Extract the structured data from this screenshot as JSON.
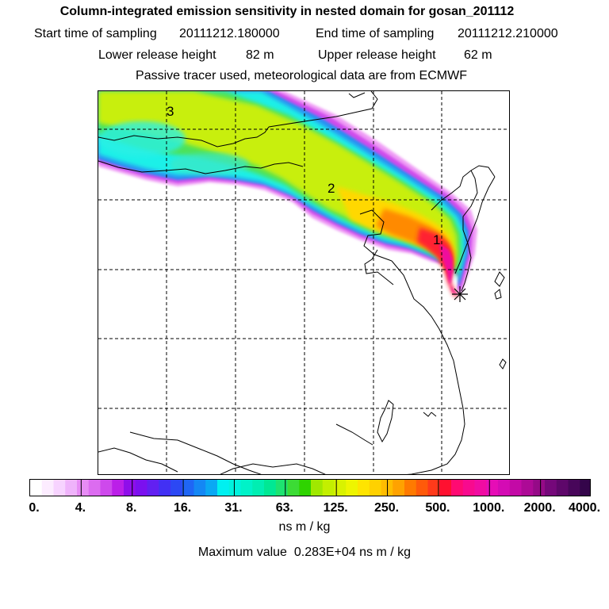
{
  "title": "Column-integrated emission sensitivity in nested domain for gosan_201112",
  "start_label": "Start time of sampling",
  "start_value": "20111212.180000",
  "end_label": "End time of sampling",
  "end_value": "20111212.210000",
  "lower_label": "Lower release height",
  "lower_value": "82 m",
  "upper_label": "Upper release height",
  "upper_value": "62 m",
  "tracer_note": "Passive tracer used, meteorological data are from ECMWF",
  "map": {
    "plume_labels": [
      "1",
      "2",
      "3"
    ],
    "release_marker": "star-marker",
    "grid": "dashed"
  },
  "colorbar": {
    "tick_labels": [
      "0.",
      "4.",
      "8.",
      "16.",
      "31.",
      "63.",
      "125.",
      "250.",
      "500.",
      "1000.",
      "2000.",
      "4000."
    ],
    "colors": [
      "#ffffff",
      "#fcecff",
      "#f7d3ff",
      "#efb3fb",
      "#e78cf5",
      "#dc6cf0",
      "#ce49ec",
      "#bb1fe8",
      "#8f0eea",
      "#7b10ef",
      "#6220f1",
      "#4230f4",
      "#2c48f4",
      "#1f66f5",
      "#1487f4",
      "#0aa8f3",
      "#00f0f0",
      "#00f2dd",
      "#00f2c8",
      "#00eeb2",
      "#00e894",
      "#1de370",
      "#3cdb35",
      "#2fd300",
      "#a0e800",
      "#c3ef00",
      "#d9f200",
      "#eef500",
      "#ffe400",
      "#ffd100",
      "#ffbd00",
      "#ffa200",
      "#ff7a00",
      "#ff5a0a",
      "#ff3a1a",
      "#ff1030",
      "#ff0a72",
      "#f80a8e",
      "#f00ca2",
      "#e60db6",
      "#d40bb4",
      "#c30aa6",
      "#ad0a96",
      "#950a87",
      "#75087a",
      "#5e076a",
      "#48065a",
      "#34054a"
    ],
    "unit": "ns m / kg"
  },
  "max_label": "Maximum value",
  "max_value": "0.283E+04",
  "max_unit": "ns m / kg"
}
